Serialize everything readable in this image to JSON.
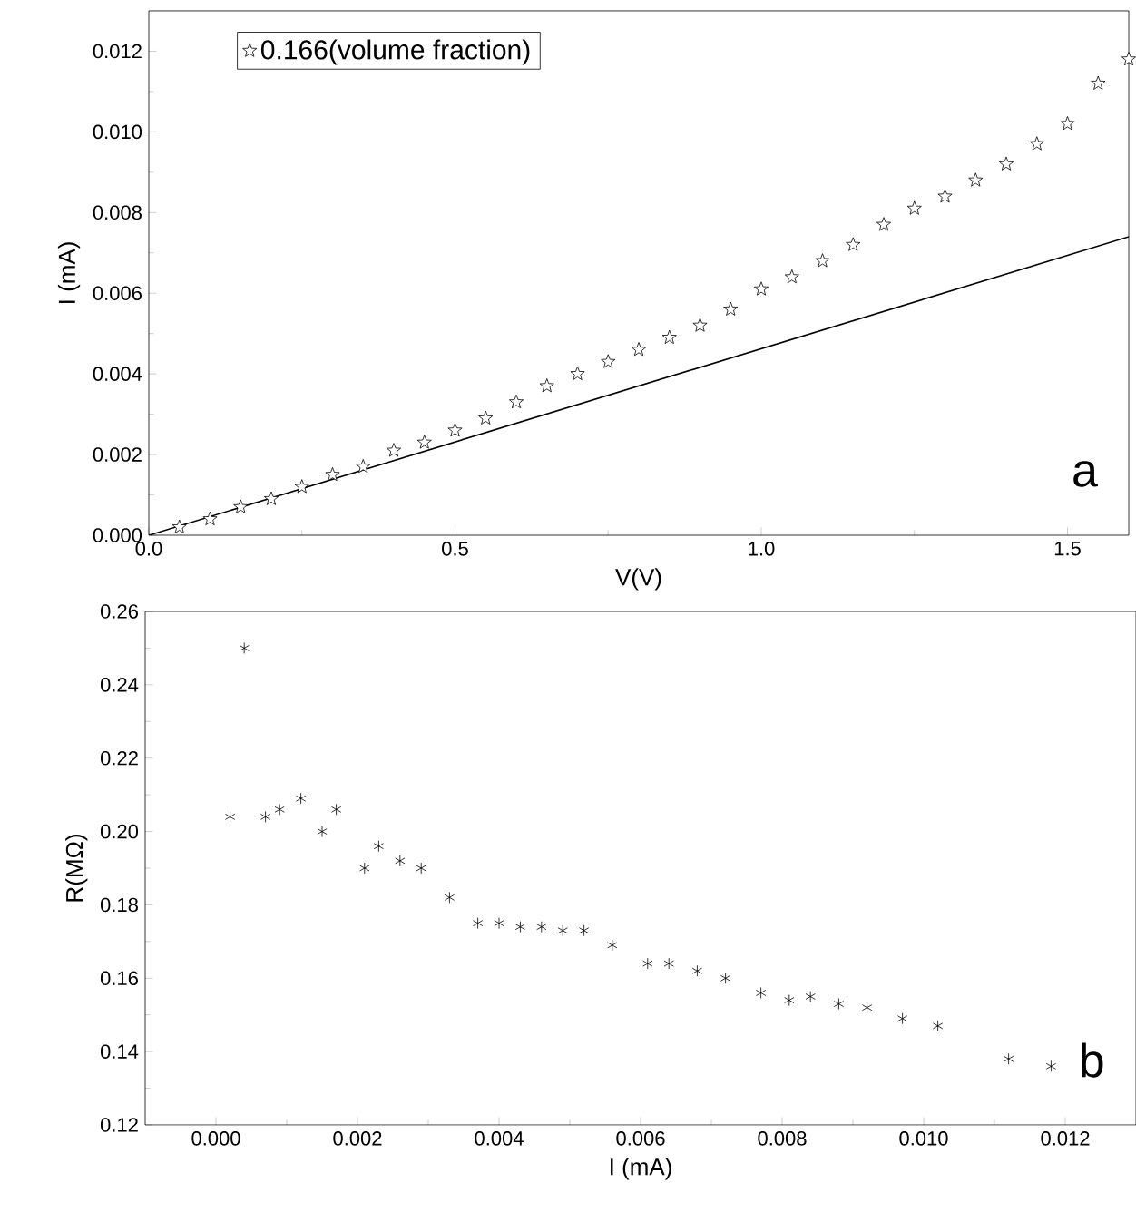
{
  "chart_data": [
    {
      "type": "scatter",
      "xlabel": "V(V)",
      "ylabel": "I (mA)",
      "xlim": [
        0,
        1.6
      ],
      "ylim": [
        0,
        0.013
      ],
      "xticks": [
        {
          "value": 0,
          "label": "0.0"
        },
        {
          "value": 0.5,
          "label": "0.5"
        },
        {
          "value": 1.0,
          "label": "1.0"
        },
        {
          "value": 1.5,
          "label": "1.5"
        }
      ],
      "yticks": [
        {
          "value": 0,
          "label": "0.000"
        },
        {
          "value": 0.002,
          "label": "0.002"
        },
        {
          "value": 0.004,
          "label": "0.004"
        },
        {
          "value": 0.006,
          "label": "0.006"
        },
        {
          "value": 0.008,
          "label": "0.008"
        },
        {
          "value": 0.01,
          "label": "0.010"
        },
        {
          "value": 0.012,
          "label": "0.012"
        }
      ],
      "legend": "top left",
      "annotations": [
        "a"
      ],
      "series": [
        {
          "name": "0.166(volume fraction)",
          "marker": "star",
          "color": "#000000",
          "x": [
            0.05,
            0.1,
            0.15,
            0.2,
            0.25,
            0.3,
            0.35,
            0.4,
            0.45,
            0.5,
            0.55,
            0.6,
            0.65,
            0.7,
            0.75,
            0.8,
            0.85,
            0.9,
            0.95,
            1.0,
            1.05,
            1.1,
            1.15,
            1.2,
            1.25,
            1.3,
            1.35,
            1.4,
            1.45,
            1.5,
            1.55,
            1.6
          ],
          "values": [
            0.0002,
            0.0004,
            0.0007,
            0.0009,
            0.0012,
            0.0015,
            0.0017,
            0.0021,
            0.0023,
            0.0026,
            0.0029,
            0.0033,
            0.0037,
            0.004,
            0.0043,
            0.0046,
            0.0049,
            0.0052,
            0.0056,
            0.0061,
            0.0064,
            0.0068,
            0.0072,
            0.0077,
            0.0081,
            0.0084,
            0.0088,
            0.0092,
            0.0097,
            0.0102,
            0.0112,
            0.0118
          ]
        },
        {
          "type": "line",
          "marker": "none",
          "color": "#000000",
          "x": [
            0,
            1.6
          ],
          "values": [
            0,
            0.0074
          ]
        }
      ]
    },
    {
      "type": "scatter",
      "xlabel": "I (mA)",
      "ylabel": "R(MΩ)",
      "xlim": [
        -0.001,
        0.013
      ],
      "ylim": [
        0.12,
        0.26
      ],
      "xticks": [
        {
          "value": 0,
          "label": "0.000"
        },
        {
          "value": 0.002,
          "label": "0.002"
        },
        {
          "value": 0.004,
          "label": "0.004"
        },
        {
          "value": 0.006,
          "label": "0.006"
        },
        {
          "value": 0.008,
          "label": "0.008"
        },
        {
          "value": 0.01,
          "label": "0.010"
        },
        {
          "value": 0.012,
          "label": "0.012"
        }
      ],
      "yticks": [
        {
          "value": 0.12,
          "label": "0.12"
        },
        {
          "value": 0.14,
          "label": "0.14"
        },
        {
          "value": 0.16,
          "label": "0.16"
        },
        {
          "value": 0.18,
          "label": "0.18"
        },
        {
          "value": 0.2,
          "label": "0.20"
        },
        {
          "value": 0.22,
          "label": "0.22"
        },
        {
          "value": 0.24,
          "label": "0.24"
        },
        {
          "value": 0.26,
          "label": "0.26"
        }
      ],
      "annotations": [
        "b"
      ],
      "series": [
        {
          "marker": "cross",
          "color": "#000000",
          "x": [
            0.0002,
            0.0004,
            0.0007,
            0.0009,
            0.0012,
            0.0015,
            0.0017,
            0.0021,
            0.0023,
            0.0026,
            0.0029,
            0.0033,
            0.0037,
            0.004,
            0.0043,
            0.0046,
            0.0049,
            0.0052,
            0.0056,
            0.0061,
            0.0064,
            0.0068,
            0.0072,
            0.0077,
            0.0081,
            0.0084,
            0.0088,
            0.0092,
            0.0097,
            0.0102,
            0.0112,
            0.0118
          ],
          "values": [
            0.204,
            0.25,
            0.204,
            0.206,
            0.209,
            0.2,
            0.206,
            0.19,
            0.196,
            0.192,
            0.19,
            0.182,
            0.175,
            0.175,
            0.174,
            0.174,
            0.173,
            0.173,
            0.169,
            0.164,
            0.164,
            0.162,
            0.16,
            0.156,
            0.154,
            0.155,
            0.153,
            0.152,
            0.149,
            0.147,
            0.138,
            0.136
          ]
        }
      ]
    }
  ]
}
